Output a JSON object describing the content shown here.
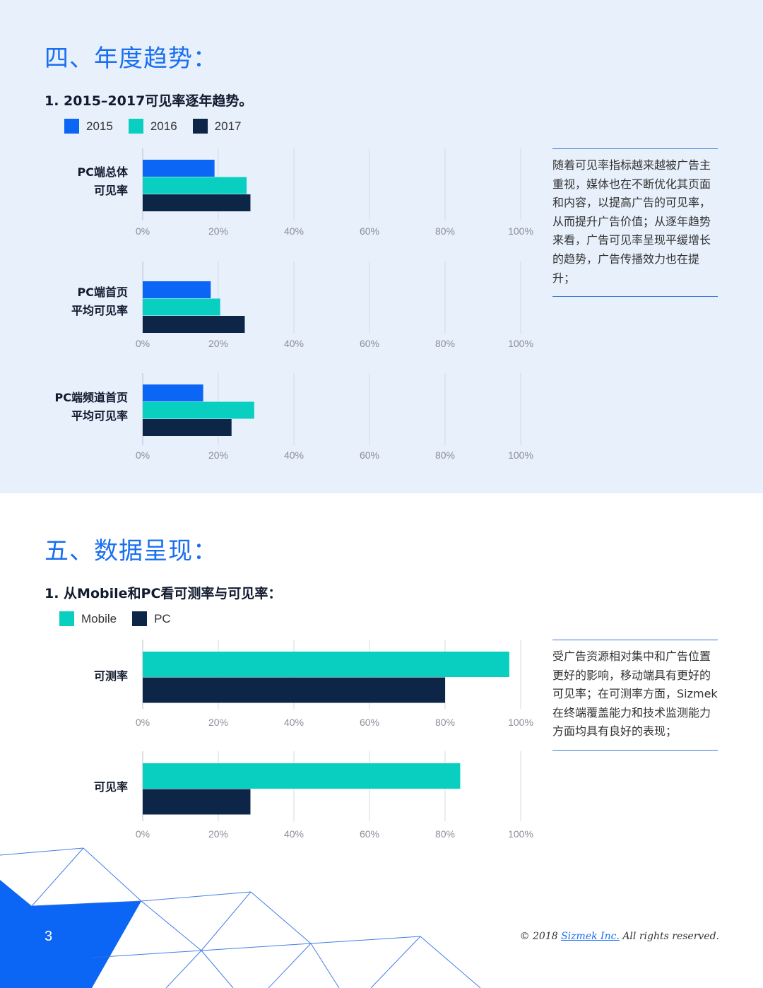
{
  "section4": {
    "heading": "四、年度趋势：",
    "subheading": "1.  2015–2017可见率逐年趋势。",
    "legend": [
      {
        "label": "2015",
        "color": "#0c66f5"
      },
      {
        "label": "2016",
        "color": "#09cfc1"
      },
      {
        "label": "2017",
        "color": "#0d2547"
      }
    ],
    "note": "随着可见率指标越来越被广告主重视，媒体也在不断优化其页面和内容，以提高广告的可见率，从而提升广告价值；从逐年趋势来看，广告可见率呈现平缓增长的趋势，广告传播效力也在提升；"
  },
  "section5": {
    "heading": "五、数据呈现：",
    "subheading": "1.  从Mobile和PC看可测率与可见率：",
    "legend": [
      {
        "label": "Mobile",
        "color": "#09cfc1"
      },
      {
        "label": "PC",
        "color": "#0d2547"
      }
    ],
    "note": "受广告资源相对集中和广告位置更好的影响，移动端具有更好的可见率；在可测率方面，Sizmek在终端覆盖能力和技术监测能力方面均具有良好的表现；"
  },
  "chart_data": [
    {
      "type": "bar",
      "orientation": "horizontal",
      "category_label": [
        "PC端总体",
        "可见率"
      ],
      "x_ticks": [
        "0%",
        "20%",
        "40%",
        "60%",
        "80%",
        "100%"
      ],
      "xlim": [
        0,
        100
      ],
      "series": [
        {
          "name": "2015",
          "values": [
            19
          ]
        },
        {
          "name": "2016",
          "values": [
            27.5
          ]
        },
        {
          "name": "2017",
          "values": [
            28.5
          ]
        }
      ]
    },
    {
      "type": "bar",
      "orientation": "horizontal",
      "category_label": [
        "PC端首页",
        "平均可见率"
      ],
      "x_ticks": [
        "0%",
        "20%",
        "40%",
        "60%",
        "80%",
        "100%"
      ],
      "xlim": [
        0,
        100
      ],
      "series": [
        {
          "name": "2015",
          "values": [
            18
          ]
        },
        {
          "name": "2016",
          "values": [
            20.5
          ]
        },
        {
          "name": "2017",
          "values": [
            27
          ]
        }
      ]
    },
    {
      "type": "bar",
      "orientation": "horizontal",
      "category_label": [
        "PC端频道首页",
        "平均可见率"
      ],
      "x_ticks": [
        "0%",
        "20%",
        "40%",
        "60%",
        "80%",
        "100%"
      ],
      "xlim": [
        0,
        100
      ],
      "series": [
        {
          "name": "2015",
          "values": [
            16
          ]
        },
        {
          "name": "2016",
          "values": [
            29.5
          ]
        },
        {
          "name": "2017",
          "values": [
            23.5
          ]
        }
      ]
    },
    {
      "type": "bar",
      "orientation": "horizontal",
      "category_label": [
        "可测率"
      ],
      "x_ticks": [
        "0%",
        "20%",
        "40%",
        "60%",
        "80%",
        "100%"
      ],
      "xlim": [
        0,
        100
      ],
      "series": [
        {
          "name": "Mobile",
          "values": [
            97
          ]
        },
        {
          "name": "PC",
          "values": [
            80
          ]
        }
      ]
    },
    {
      "type": "bar",
      "orientation": "horizontal",
      "category_label": [
        "可见率"
      ],
      "x_ticks": [
        "0%",
        "20%",
        "40%",
        "60%",
        "80%",
        "100%"
      ],
      "xlim": [
        0,
        100
      ],
      "series": [
        {
          "name": "Mobile",
          "values": [
            84
          ]
        },
        {
          "name": "PC",
          "values": [
            28.5
          ]
        }
      ]
    }
  ],
  "footer": {
    "page_number": "3",
    "copyright_prefix": "© 2018 ",
    "company_link": "Sizmek Inc.",
    "copyright_suffix": " All rights reserved."
  }
}
